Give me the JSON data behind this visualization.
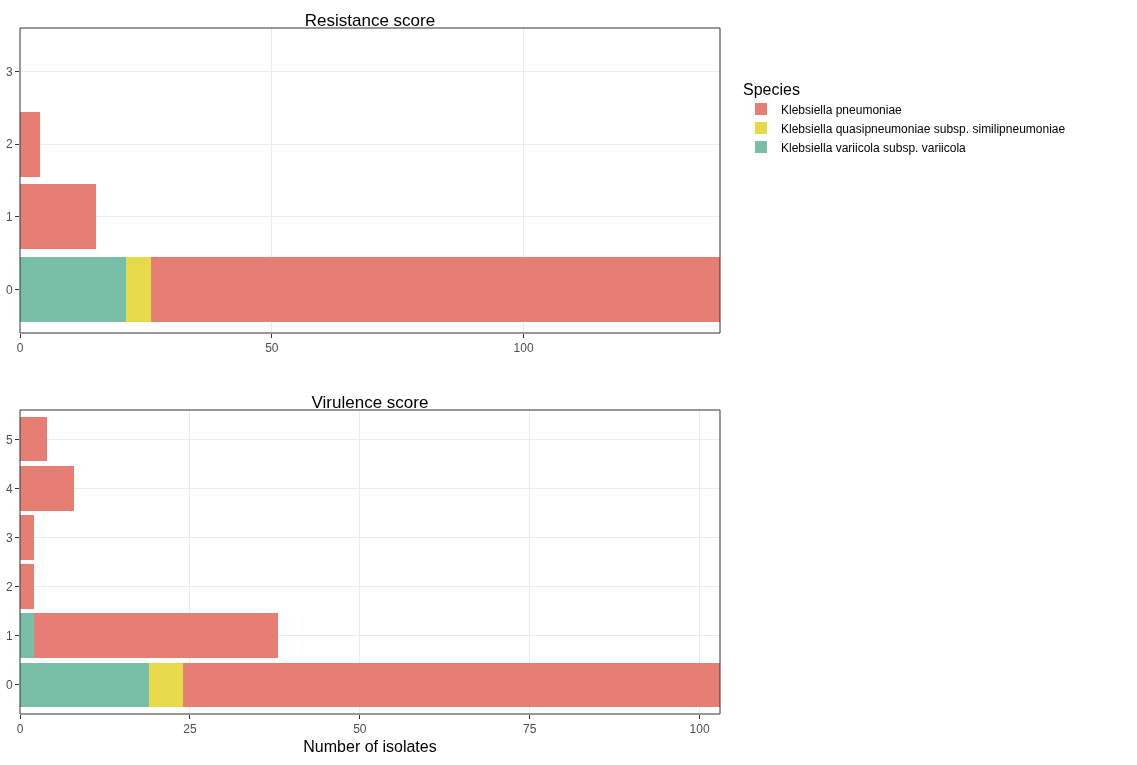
{
  "chart_data": [
    {
      "type": "bar",
      "orientation": "horizontal",
      "stacked": true,
      "title": "Resistance score",
      "legend_title": "Species",
      "categories": [
        "3",
        "2",
        "1",
        "0"
      ],
      "series": [
        {
          "name": "Klebsiella variicola subsp. variicola",
          "color": "#79bfa8",
          "values": [
            null,
            null,
            null,
            21
          ]
        },
        {
          "name": "Klebsiella quasipneumoniae subsp. similipneumoniae",
          "color": "#e6d94a",
          "values": [
            null,
            null,
            null,
            5
          ]
        },
        {
          "name": "Klebsiella pneumoniae",
          "color": "#e67e74",
          "values": [
            null,
            4,
            15,
            113
          ]
        }
      ],
      "xlim": [
        0,
        139
      ],
      "xticks": [
        0,
        50,
        100
      ],
      "grid": true,
      "legend": "top right"
    },
    {
      "type": "bar",
      "orientation": "horizontal",
      "stacked": true,
      "title": "Virulence score",
      "xlabel": "Number of isolates",
      "categories": [
        "5",
        "4",
        "3",
        "2",
        "1",
        "0"
      ],
      "series": [
        {
          "color": "#79bfa8",
          "values": [
            null,
            null,
            null,
            null,
            2,
            19
          ]
        },
        {
          "color": "#e6d94a",
          "values": [
            null,
            null,
            null,
            null,
            null,
            5
          ]
        },
        {
          "color": "#e67e74",
          "values": [
            4,
            8,
            2,
            2,
            36,
            79
          ]
        }
      ],
      "xlim": [
        0,
        103
      ],
      "xticks": [
        0,
        25,
        50,
        75,
        100
      ],
      "grid": true
    }
  ]
}
